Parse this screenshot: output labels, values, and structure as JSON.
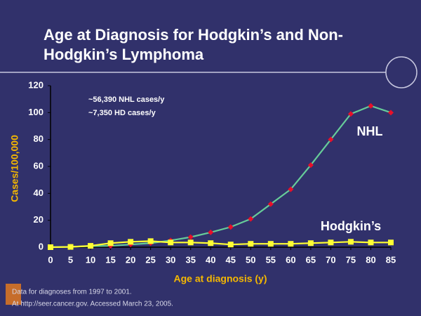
{
  "chart_data": {
    "type": "line",
    "title": "Age at Diagnosis for Hodgkin’s and Non-Hodgkin’s Lymphoma",
    "x_label": "Age at diagnosis (y)",
    "y_label": "Cases/100,000",
    "annotations": [
      "~56,390 NHL cases/y",
      "~7,350 HD cases/y"
    ],
    "footnotes": [
      "Data for diagnoses from 1997 to 2001.",
      "At http://seer.cancer.gov. Accessed March 23, 2005."
    ],
    "x": [
      0,
      5,
      10,
      15,
      20,
      25,
      30,
      35,
      40,
      45,
      50,
      55,
      60,
      65,
      70,
      75,
      80,
      85
    ],
    "xlim": [
      0,
      85
    ],
    "xticks": [
      0,
      5,
      10,
      15,
      20,
      25,
      30,
      35,
      40,
      45,
      50,
      55,
      60,
      65,
      70,
      75,
      80,
      85
    ],
    "ylim": [
      0,
      120
    ],
    "yticks": [
      0,
      20,
      40,
      60,
      80,
      100,
      120
    ],
    "series": [
      {
        "name": "NHL",
        "color": "#66cc99",
        "marker_color": "#e8102a",
        "marker": "diamond",
        "values": [
          0,
          0.3,
          0.8,
          1,
          2,
          3,
          5,
          7.5,
          11,
          15,
          21,
          32,
          43,
          61,
          80,
          99,
          105,
          100
        ]
      },
      {
        "name": "Hodgkin’s",
        "color": "#ffff33",
        "marker_color": "#ffff33",
        "marker": "square",
        "values": [
          0,
          0.2,
          1,
          3,
          4,
          4.5,
          3.5,
          3.5,
          3,
          2,
          2.5,
          2.5,
          2.5,
          3,
          3.5,
          4,
          3.5,
          3.5
        ]
      }
    ]
  }
}
